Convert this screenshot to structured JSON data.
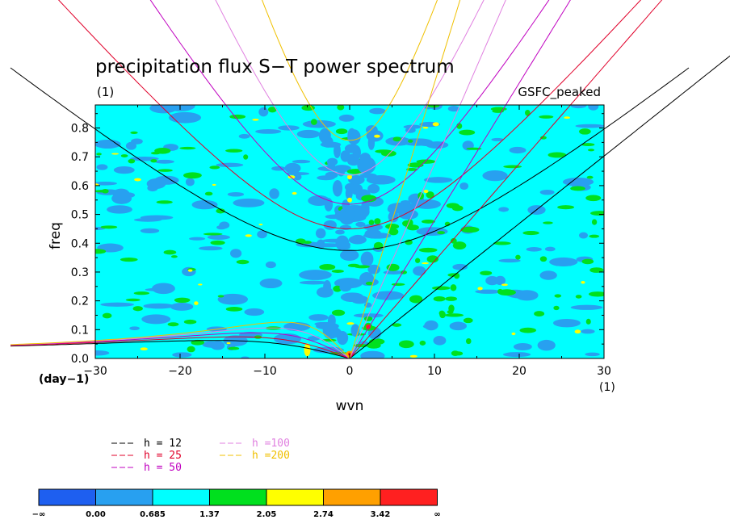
{
  "chart_data": {
    "type": "heatmap",
    "title": "precipitation flux S−T power spectrum",
    "subtitle_left": "(1)",
    "subtitle_right": "GSFC_peaked",
    "xlabel": "wvn",
    "xunit": "(1)",
    "ylabel": "freq",
    "yunit": "(day−1)",
    "xlim": [
      -30,
      30
    ],
    "ylim": [
      0,
      0.88
    ],
    "x_ticks": [
      "−30",
      "−20",
      "−10",
      "0",
      "10",
      "20",
      "30"
    ],
    "y_ticks": [
      "0.0",
      "0.1",
      "0.2",
      "0.3",
      "0.4",
      "0.5",
      "0.6",
      "0.7",
      "0.8"
    ],
    "x_tick_values": [
      -30,
      -20,
      -10,
      0,
      10,
      20,
      30
    ],
    "y_tick_values": [
      0,
      0.1,
      0.2,
      0.3,
      0.4,
      0.5,
      0.6,
      0.7,
      0.8
    ],
    "background_level_color": "#00ffff",
    "colorbar": {
      "labels": [
        "−∞",
        "0.00",
        "0.685",
        "1.37",
        "2.05",
        "2.74",
        "3.42",
        "∞"
      ],
      "colors": [
        "#1e5ff0",
        "#28a0f0",
        "#00ffff",
        "#00e01e",
        "#ffff00",
        "#ffa000",
        "#ff2020"
      ]
    },
    "dispersion_curves": [
      {
        "label": "h = 12",
        "h": 12,
        "color": "#000000"
      },
      {
        "label": "h = 25",
        "h": 25,
        "color": "#e0002a"
      },
      {
        "label": "h = 50",
        "h": 50,
        "color": "#c000c0"
      },
      {
        "label": "h =100",
        "h": 100,
        "color": "#e080e0"
      },
      {
        "label": "h =200",
        "h": 200,
        "color": "#f0c000"
      }
    ],
    "dispersion_families": [
      "kelvin",
      "inertia-gravity n=1",
      "equatorial rossby n=1"
    ]
  }
}
